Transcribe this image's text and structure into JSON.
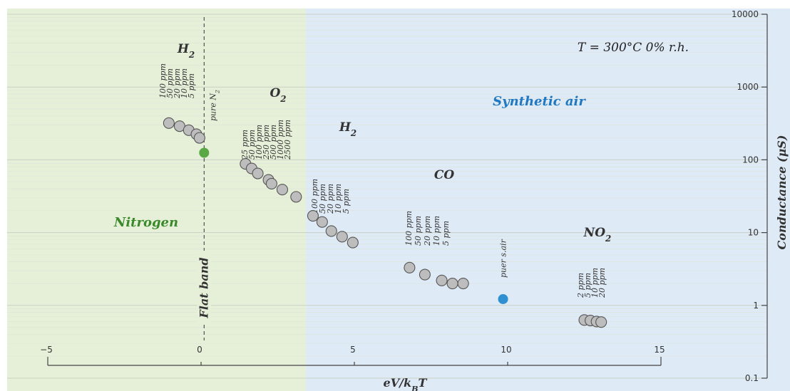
{
  "chart_data": {
    "type": "scatter",
    "xlabel": "eV/k_BT",
    "ylabel": "Conductance (μS)",
    "xlim": [
      -5,
      15
    ],
    "xticks": [
      -5,
      0,
      5,
      10,
      15
    ],
    "ylim": [
      0.1,
      10000
    ],
    "yscale": "log",
    "yticks": [
      0.1,
      1,
      10,
      100,
      1000,
      10000
    ],
    "ytick_labels": [
      "0.1",
      "1",
      "10",
      "100",
      "1000",
      "10000"
    ],
    "grid": true,
    "annotations": {
      "temperature": "T = 300°C   0% r.h.",
      "flat_band": "Flat band",
      "nitrogen_region": "Nitrogen",
      "synthetic_air_region": "Synthetic air",
      "pure_n2": "pure N₂",
      "pure_s_air": "puer s.air"
    },
    "series": [
      {
        "name": "H₂",
        "atmosphere": "Nitrogen",
        "color": "#bdbdbd",
        "x": [
          -1.05,
          -0.7,
          -0.4,
          -0.15,
          -0.05
        ],
        "y": [
          320,
          290,
          255,
          225,
          200
        ],
        "labels": [
          "100 ppm",
          "50 ppm",
          "20 ppm",
          "10 ppm",
          "5 ppm"
        ]
      },
      {
        "name": "pure N₂",
        "color": "#5aa845",
        "x": [
          0.1
        ],
        "y": [
          125
        ]
      },
      {
        "name": "O₂",
        "atmosphere": "Nitrogen",
        "color": "#bdbdbd",
        "x": [
          1.45,
          1.65,
          1.85,
          2.2,
          2.3,
          2.65,
          3.1
        ],
        "y": [
          88,
          76,
          65,
          53,
          47,
          39,
          31
        ],
        "labels": [
          "25 ppm",
          "50 ppm",
          "100 ppm",
          "250 ppm",
          "500 ppm",
          "1000 ppm",
          "2500 ppm"
        ]
      },
      {
        "name": "H₂",
        "atmosphere": "Synthetic air",
        "color": "#bdbdbd",
        "x": [
          3.65,
          3.95,
          4.25,
          4.6,
          4.95
        ],
        "y": [
          17,
          14,
          10.5,
          8.8,
          7.3
        ],
        "labels": [
          "100 ppm",
          "50 ppm",
          "20 ppm",
          "10 ppm",
          "5 ppm"
        ]
      },
      {
        "name": "CO",
        "atmosphere": "Synthetic air",
        "color": "#bdbdbd",
        "x": [
          6.8,
          7.3,
          7.85,
          8.2,
          8.55
        ],
        "y": [
          3.3,
          2.65,
          2.2,
          2.0,
          2.0
        ],
        "labels": [
          "100 ppm",
          "50 ppm",
          "20 ppm",
          "10 ppm",
          "5 ppm"
        ]
      },
      {
        "name": "puer s.air",
        "color": "#2f8fd0",
        "x": [
          9.85
        ],
        "y": [
          1.22
        ]
      },
      {
        "name": "NO₂",
        "atmosphere": "Synthetic air",
        "color": "#bdbdbd",
        "x": [
          12.5,
          12.7,
          12.9,
          13.05
        ],
        "y": [
          0.63,
          0.62,
          0.6,
          0.59
        ],
        "labels": [
          "2 ppm",
          "5 ppm",
          "10 ppm",
          "20 ppm"
        ]
      }
    ]
  }
}
